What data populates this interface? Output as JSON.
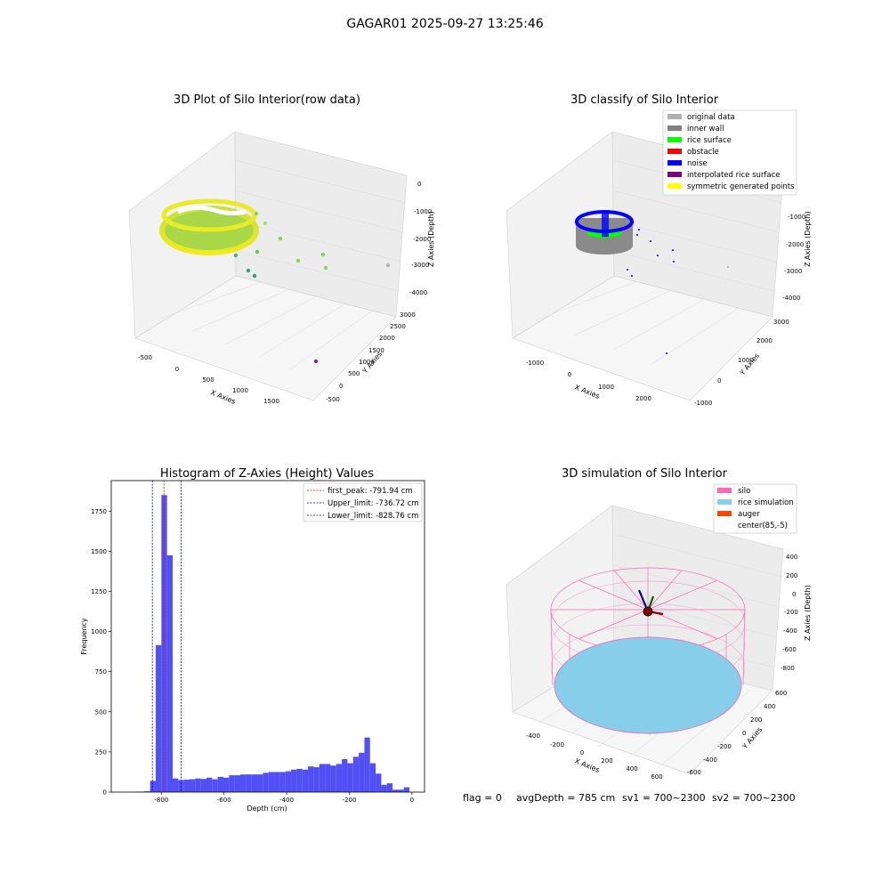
{
  "figure_title": "GAGAR01 2025-09-27 13:25:46",
  "footer": {
    "flag": "flag = 0",
    "avg_depth": "avgDepth = 785 cm",
    "sv1": "sv1 = 700~2300",
    "sv2": "sv2 = 700~2300"
  },
  "colors": {
    "hist_bar": "#5050f5",
    "first_peak": "#ff0000",
    "limits": "#0000cc",
    "silo": "#ff69b4",
    "rice_simulation": "#87ceeb",
    "auger": "#ff4500",
    "original_data": "#b0b0b0",
    "inner_wall": "#808080",
    "rice_surface": "#00ff00",
    "obstacle": "#ff0000",
    "noise": "#0000ff",
    "interpolated_rice_surface": "#800080",
    "symmetric_generated_points": "#ffff00"
  },
  "plots": {
    "raw": {
      "title": "3D Plot of Silo Interior(row data)",
      "xlabel": "X Axies",
      "ylabel": "Y Axies",
      "zlabel": "Z Axies (Depth)",
      "xticks": [
        "-500",
        "0",
        "500",
        "1000",
        "1500"
      ],
      "yticks": [
        "-500",
        "0",
        "500",
        "1000",
        "1500",
        "2000",
        "2500",
        "3000"
      ],
      "zticks": [
        "0",
        "-1000",
        "-2000",
        "-3000",
        "-4000"
      ]
    },
    "classify": {
      "title": "3D classify of Silo Interior",
      "xlabel": "X Axies",
      "ylabel": "Y Axies",
      "zlabel": "Z Axies (Depth)",
      "xticks": [
        "-1000",
        "0",
        "1000",
        "2000"
      ],
      "yticks": [
        "-1000",
        "0",
        "1000",
        "2000",
        "3000"
      ],
      "zticks": [
        "0",
        "-1000",
        "-2000",
        "-3000",
        "-4000"
      ],
      "legend": [
        "original data",
        "inner wall",
        "rice surface",
        "obstacle",
        "noise",
        "interpolated rice surface",
        "symmetric generated points"
      ]
    },
    "simulation": {
      "title": "3D simulation of Silo Interior",
      "xlabel": "X Axies",
      "ylabel": "Y Axies",
      "zlabel": "Z Axies (Depth)",
      "xticks": [
        "-400",
        "-200",
        "0",
        "200",
        "400",
        "600"
      ],
      "yticks": [
        "-600",
        "-400",
        "-200",
        "0",
        "200",
        "400",
        "600"
      ],
      "zticks": [
        "400",
        "200",
        "0",
        "-200",
        "-400",
        "-600",
        "-800"
      ],
      "legend": [
        "silo",
        "rice simulation",
        "auger",
        "center(85,-5)"
      ]
    }
  },
  "chart_data": [
    {
      "type": "bar",
      "title": "Histogram of Z-Axies (Height) Values",
      "xlabel": "Depth (cm)",
      "ylabel": "Frequency",
      "xlim": [
        -960,
        40
      ],
      "ylim": [
        0,
        1940
      ],
      "xticks": [
        -800,
        -600,
        -400,
        -200,
        0
      ],
      "yticks": [
        0,
        250,
        500,
        750,
        1000,
        1250,
        1500,
        1750
      ],
      "bin_width": 18,
      "bin_starts": [
        -890,
        -872,
        -854,
        -836,
        -818,
        -800,
        -782,
        -764,
        -746,
        -728,
        -710,
        -692,
        -674,
        -656,
        -638,
        -620,
        -602,
        -584,
        -566,
        -548,
        -530,
        -512,
        -494,
        -476,
        -458,
        -440,
        -422,
        -404,
        -386,
        -368,
        -350,
        -332,
        -314,
        -296,
        -278,
        -260,
        -242,
        -224,
        -206,
        -188,
        -170,
        -152,
        -134,
        -116,
        -98,
        -80,
        -62,
        -44,
        -26,
        -8
      ],
      "values": [
        2,
        3,
        5,
        70,
        915,
        1850,
        1475,
        85,
        75,
        78,
        80,
        85,
        82,
        90,
        80,
        95,
        90,
        105,
        105,
        110,
        110,
        110,
        110,
        120,
        125,
        125,
        125,
        130,
        140,
        145,
        140,
        160,
        155,
        175,
        175,
        165,
        175,
        205,
        180,
        220,
        245,
        340,
        180,
        115,
        45,
        55,
        15,
        15,
        30,
        0
      ],
      "vlines": [
        {
          "label": "first_peak: -791.94 cm",
          "x": -791.94,
          "style": "red"
        },
        {
          "label": "Upper_limit: -736.72 cm",
          "x": -736.72,
          "style": "blue"
        },
        {
          "label": "Lower_limit: -828.76 cm",
          "x": -828.76,
          "style": "blue"
        }
      ]
    }
  ]
}
